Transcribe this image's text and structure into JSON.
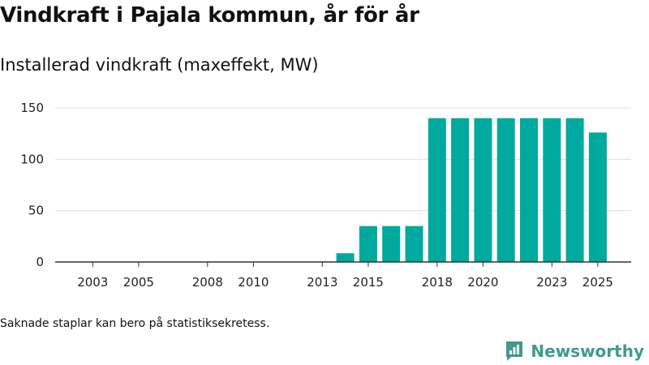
{
  "title": "Vindkraft i Pajala kommun, år för år",
  "subtitle": "Installerad vindkraft (maxeffekt, MW)",
  "footnote": "Saknade staplar kan bero på statistiksekretess.",
  "brand": {
    "name": "Newsworthy",
    "icon": "newsworthy-logo-icon",
    "color": "#3f9a8f"
  },
  "chart_data": {
    "type": "bar",
    "title": "Installerad vindkraft (maxeffekt, MW)",
    "xlabel": "",
    "ylabel": "",
    "bar_color": "#00a99d",
    "categories": [
      "2002",
      "2003",
      "2004",
      "2005",
      "2006",
      "2007",
      "2008",
      "2009",
      "2010",
      "2011",
      "2012",
      "2013",
      "2014",
      "2015",
      "2016",
      "2017",
      "2018",
      "2019",
      "2020",
      "2021",
      "2022",
      "2023",
      "2024",
      "2025"
    ],
    "values": [
      0,
      0,
      0,
      0,
      0,
      0,
      0,
      0,
      0,
      0,
      0,
      0,
      8.5,
      35,
      35,
      35,
      140,
      140,
      140,
      140,
      140,
      140,
      140,
      126
    ],
    "x_tick_labels": [
      "2003",
      "2005",
      "2008",
      "2010",
      "2013",
      "2015",
      "2018",
      "2020",
      "2023",
      "2025"
    ],
    "y_ticks": [
      0,
      50,
      100,
      150
    ],
    "ylim": [
      0,
      150
    ],
    "grid": true
  }
}
